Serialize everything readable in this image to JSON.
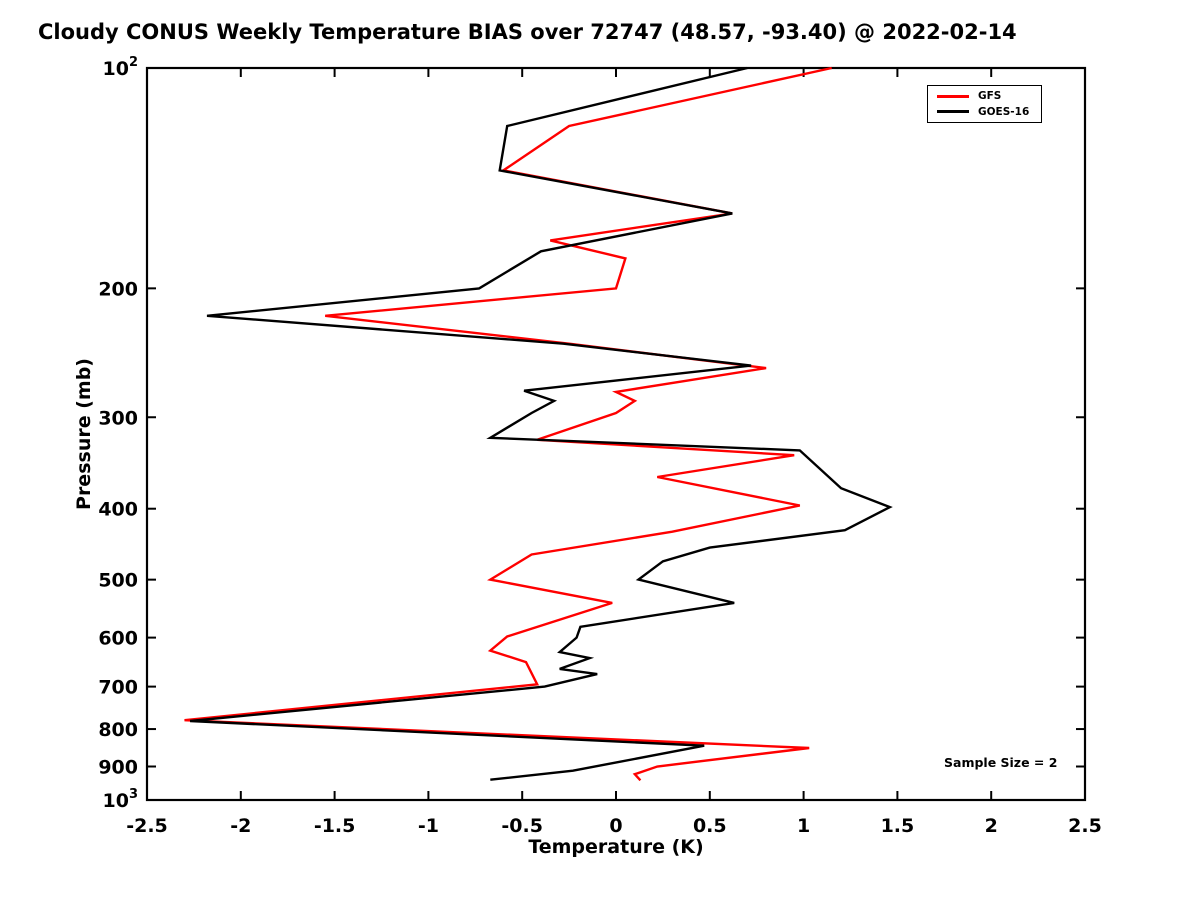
{
  "figure": {
    "background": "#ffffff"
  },
  "chart_data": {
    "type": "line",
    "title": "Cloudy CONUS Weekly Temperature BIAS over 72747 (48.57, -93.40) @ 2022-02-14",
    "xlabel": "Temperature (K)",
    "ylabel": "Pressure (mb)",
    "x_axis": {
      "min": -2.5,
      "max": 2.5,
      "ticks": [
        -2.5,
        -2,
        -1.5,
        -1,
        -0.5,
        0,
        0.5,
        1,
        1.5,
        2,
        2.5
      ],
      "tick_labels": [
        "-2.5",
        "-2",
        "-1.5",
        "-1",
        "-0.5",
        "0",
        "0.5",
        "1",
        "1.5",
        "2",
        "2.5"
      ]
    },
    "y_axis": {
      "scale": "log",
      "min": 100,
      "max": 1000,
      "direction": "pressure-increasing-downward",
      "ticks": [
        100,
        200,
        300,
        400,
        500,
        600,
        700,
        800,
        900,
        1000
      ],
      "tick_labels": [
        "10^2",
        "200",
        "300",
        "400",
        "500",
        "600",
        "700",
        "800",
        "900",
        "10^3"
      ]
    },
    "grid": false,
    "legend": {
      "position": "upper-right",
      "entries": [
        {
          "label": "GFS",
          "color": "#ff0000"
        },
        {
          "label": "GOES-16",
          "color": "#000000"
        }
      ]
    },
    "annotations": [
      {
        "text": "Sample Size = 2"
      }
    ],
    "sample_size": 2,
    "series": [
      {
        "name": "GFS",
        "color": "#ff0000",
        "points_format": [
          "temperature_bias_K",
          "pressure_mb"
        ],
        "points": [
          [
            1.15,
            100
          ],
          [
            -0.25,
            120
          ],
          [
            -0.6,
            138
          ],
          [
            0.62,
            158
          ],
          [
            -0.35,
            172
          ],
          [
            0.05,
            182
          ],
          [
            0.0,
            200
          ],
          [
            -1.55,
            218
          ],
          [
            -0.25,
            238
          ],
          [
            0.8,
            257
          ],
          [
            0.0,
            277
          ],
          [
            0.1,
            285
          ],
          [
            0.0,
            296
          ],
          [
            -0.42,
            322
          ],
          [
            0.95,
            338
          ],
          [
            0.22,
            362
          ],
          [
            0.98,
            396
          ],
          [
            0.3,
            430
          ],
          [
            -0.45,
            462
          ],
          [
            -0.67,
            500
          ],
          [
            -0.02,
            538
          ],
          [
            -0.58,
            598
          ],
          [
            -0.67,
            625
          ],
          [
            -0.48,
            648
          ],
          [
            -0.42,
            695
          ],
          [
            -2.3,
            778
          ],
          [
            1.03,
            849
          ],
          [
            0.22,
            900
          ],
          [
            0.1,
            922
          ],
          [
            0.13,
            940
          ]
        ]
      },
      {
        "name": "GOES-16",
        "color": "#000000",
        "points_format": [
          "temperature_bias_K",
          "pressure_mb"
        ],
        "points": [
          [
            0.7,
            100
          ],
          [
            -0.58,
            120
          ],
          [
            -0.62,
            138
          ],
          [
            0.62,
            158
          ],
          [
            -0.4,
            178
          ],
          [
            -0.73,
            200
          ],
          [
            -2.18,
            218
          ],
          [
            -0.28,
            238
          ],
          [
            0.72,
            255
          ],
          [
            -0.49,
            276
          ],
          [
            -0.33,
            285
          ],
          [
            -0.45,
            296
          ],
          [
            -0.67,
            320
          ],
          [
            0.98,
            333
          ],
          [
            1.2,
            375
          ],
          [
            1.46,
            398
          ],
          [
            1.22,
            428
          ],
          [
            0.5,
            452
          ],
          [
            0.25,
            472
          ],
          [
            0.12,
            500
          ],
          [
            0.63,
            538
          ],
          [
            -0.19,
            580
          ],
          [
            -0.21,
            600
          ],
          [
            -0.3,
            628
          ],
          [
            -0.14,
            640
          ],
          [
            -0.3,
            662
          ],
          [
            -0.1,
            673
          ],
          [
            -0.38,
            700
          ],
          [
            -2.27,
            780
          ],
          [
            0.47,
            843
          ],
          [
            -0.23,
            912
          ],
          [
            -0.67,
            938
          ]
        ]
      }
    ]
  }
}
